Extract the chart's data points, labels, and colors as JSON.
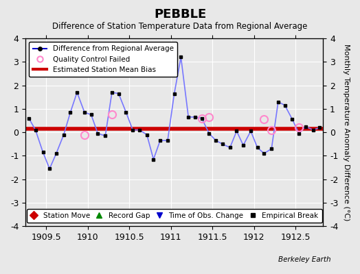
{
  "title": "PEBBLE",
  "subtitle": "Difference of Station Temperature Data from Regional Average",
  "ylabel_right": "Monthly Temperature Anomaly Difference (°C)",
  "xlabel": "",
  "bias_value": 0.15,
  "xlim": [
    1909.25,
    1912.83
  ],
  "ylim": [
    -4,
    4
  ],
  "yticks": [
    -4,
    -3,
    -2,
    -1,
    0,
    1,
    2,
    3,
    4
  ],
  "xticks": [
    1909.5,
    1910,
    1910.5,
    1911,
    1911.5,
    1912,
    1912.5
  ],
  "background_color": "#e8e8e8",
  "plot_bg_color": "#e8e8e8",
  "line_color": "#7777ff",
  "marker_color": "#000000",
  "bias_color": "#cc0000",
  "qc_color": "#ff88cc",
  "berkeley_earth_text": "Berkeley Earth",
  "x_data": [
    1909.29,
    1909.37,
    1909.46,
    1909.54,
    1909.62,
    1909.71,
    1909.79,
    1909.87,
    1909.96,
    1910.04,
    1910.12,
    1910.21,
    1910.29,
    1910.37,
    1910.46,
    1910.54,
    1910.62,
    1910.71,
    1910.79,
    1910.87,
    1910.96,
    1911.04,
    1911.12,
    1911.21,
    1911.29,
    1911.37,
    1911.46,
    1911.54,
    1911.62,
    1911.71,
    1911.79,
    1911.87,
    1911.96,
    1912.04,
    1912.12,
    1912.21,
    1912.29,
    1912.37,
    1912.46,
    1912.54,
    1912.62,
    1912.71,
    1912.79
  ],
  "y_data": [
    0.6,
    0.1,
    -0.85,
    -1.55,
    -0.9,
    -0.1,
    0.85,
    1.7,
    0.85,
    0.75,
    -0.05,
    -0.15,
    1.7,
    1.65,
    0.85,
    0.1,
    0.1,
    -0.1,
    -1.15,
    -0.35,
    -0.35,
    1.65,
    3.2,
    0.65,
    0.65,
    0.6,
    -0.05,
    -0.35,
    -0.5,
    -0.65,
    0.05,
    -0.55,
    0.05,
    -0.65,
    -0.9,
    -0.7,
    1.3,
    1.15,
    0.55,
    -0.05,
    0.25,
    0.1,
    0.2
  ],
  "qc_failed_x": [
    1909.96,
    1910.29,
    1911.37,
    1911.46,
    1912.12,
    1912.21,
    1912.54
  ],
  "qc_failed_y": [
    -0.1,
    0.75,
    0.6,
    0.65,
    0.55,
    0.1,
    0.2
  ],
  "late_x": [
    1912.75
  ],
  "late_y": [
    -3.8
  ],
  "legend1_items": [
    {
      "label": "Difference from Regional Average",
      "color": "#0000cc",
      "lw": 1.5,
      "marker": "o",
      "ms": 4
    },
    {
      "label": "Quality Control Failed",
      "color": "#ff88cc",
      "marker": "o",
      "ms": 6,
      "filled": false
    },
    {
      "label": "Estimated Station Mean Bias",
      "color": "#cc0000",
      "lw": 3
    }
  ],
  "legend2_items": [
    {
      "label": "Station Move",
      "color": "#cc0000",
      "marker": "D"
    },
    {
      "label": "Record Gap",
      "color": "#008800",
      "marker": "^"
    },
    {
      "label": "Time of Obs. Change",
      "color": "#0000cc",
      "marker": "v"
    },
    {
      "label": "Empirical Break",
      "color": "#000000",
      "marker": "s"
    }
  ]
}
